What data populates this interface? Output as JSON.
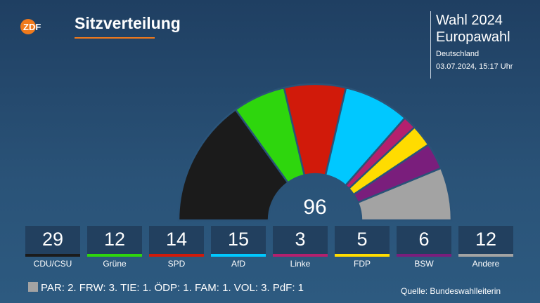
{
  "header": {
    "logo_text": "ZDF",
    "title": "Sitzverteilung",
    "election_line1": "Wahl 2024",
    "election_line2": "Europawahl",
    "region": "Deutschland",
    "timestamp": "03.07.2024, 15:17 Uhr"
  },
  "chart_data": {
    "type": "pie",
    "variant": "parliament-hemicycle",
    "center_label": "96",
    "total_seats": 96,
    "categories": [
      "CDU/CSU",
      "Grüne",
      "SPD",
      "AfD",
      "Linke",
      "FDP",
      "BSW",
      "Andere"
    ],
    "values": [
      29,
      12,
      14,
      15,
      3,
      5,
      6,
      12
    ],
    "colors": [
      "#1b1b1b",
      "#2ed60d",
      "#d11a0a",
      "#00c8ff",
      "#b4206e",
      "#ffdc00",
      "#7a1e7c",
      "#a3a3a3"
    ],
    "value_labels": [
      "29",
      "12",
      "14",
      "15",
      "3",
      "5",
      "6",
      "12"
    ]
  },
  "others_note": "PAR: 2. FRW: 3. TIE: 1. ÖDP: 1. FAM: 1. VOL: 3. PdF: 1",
  "source": "Quelle: Bundeswahlleiterin"
}
